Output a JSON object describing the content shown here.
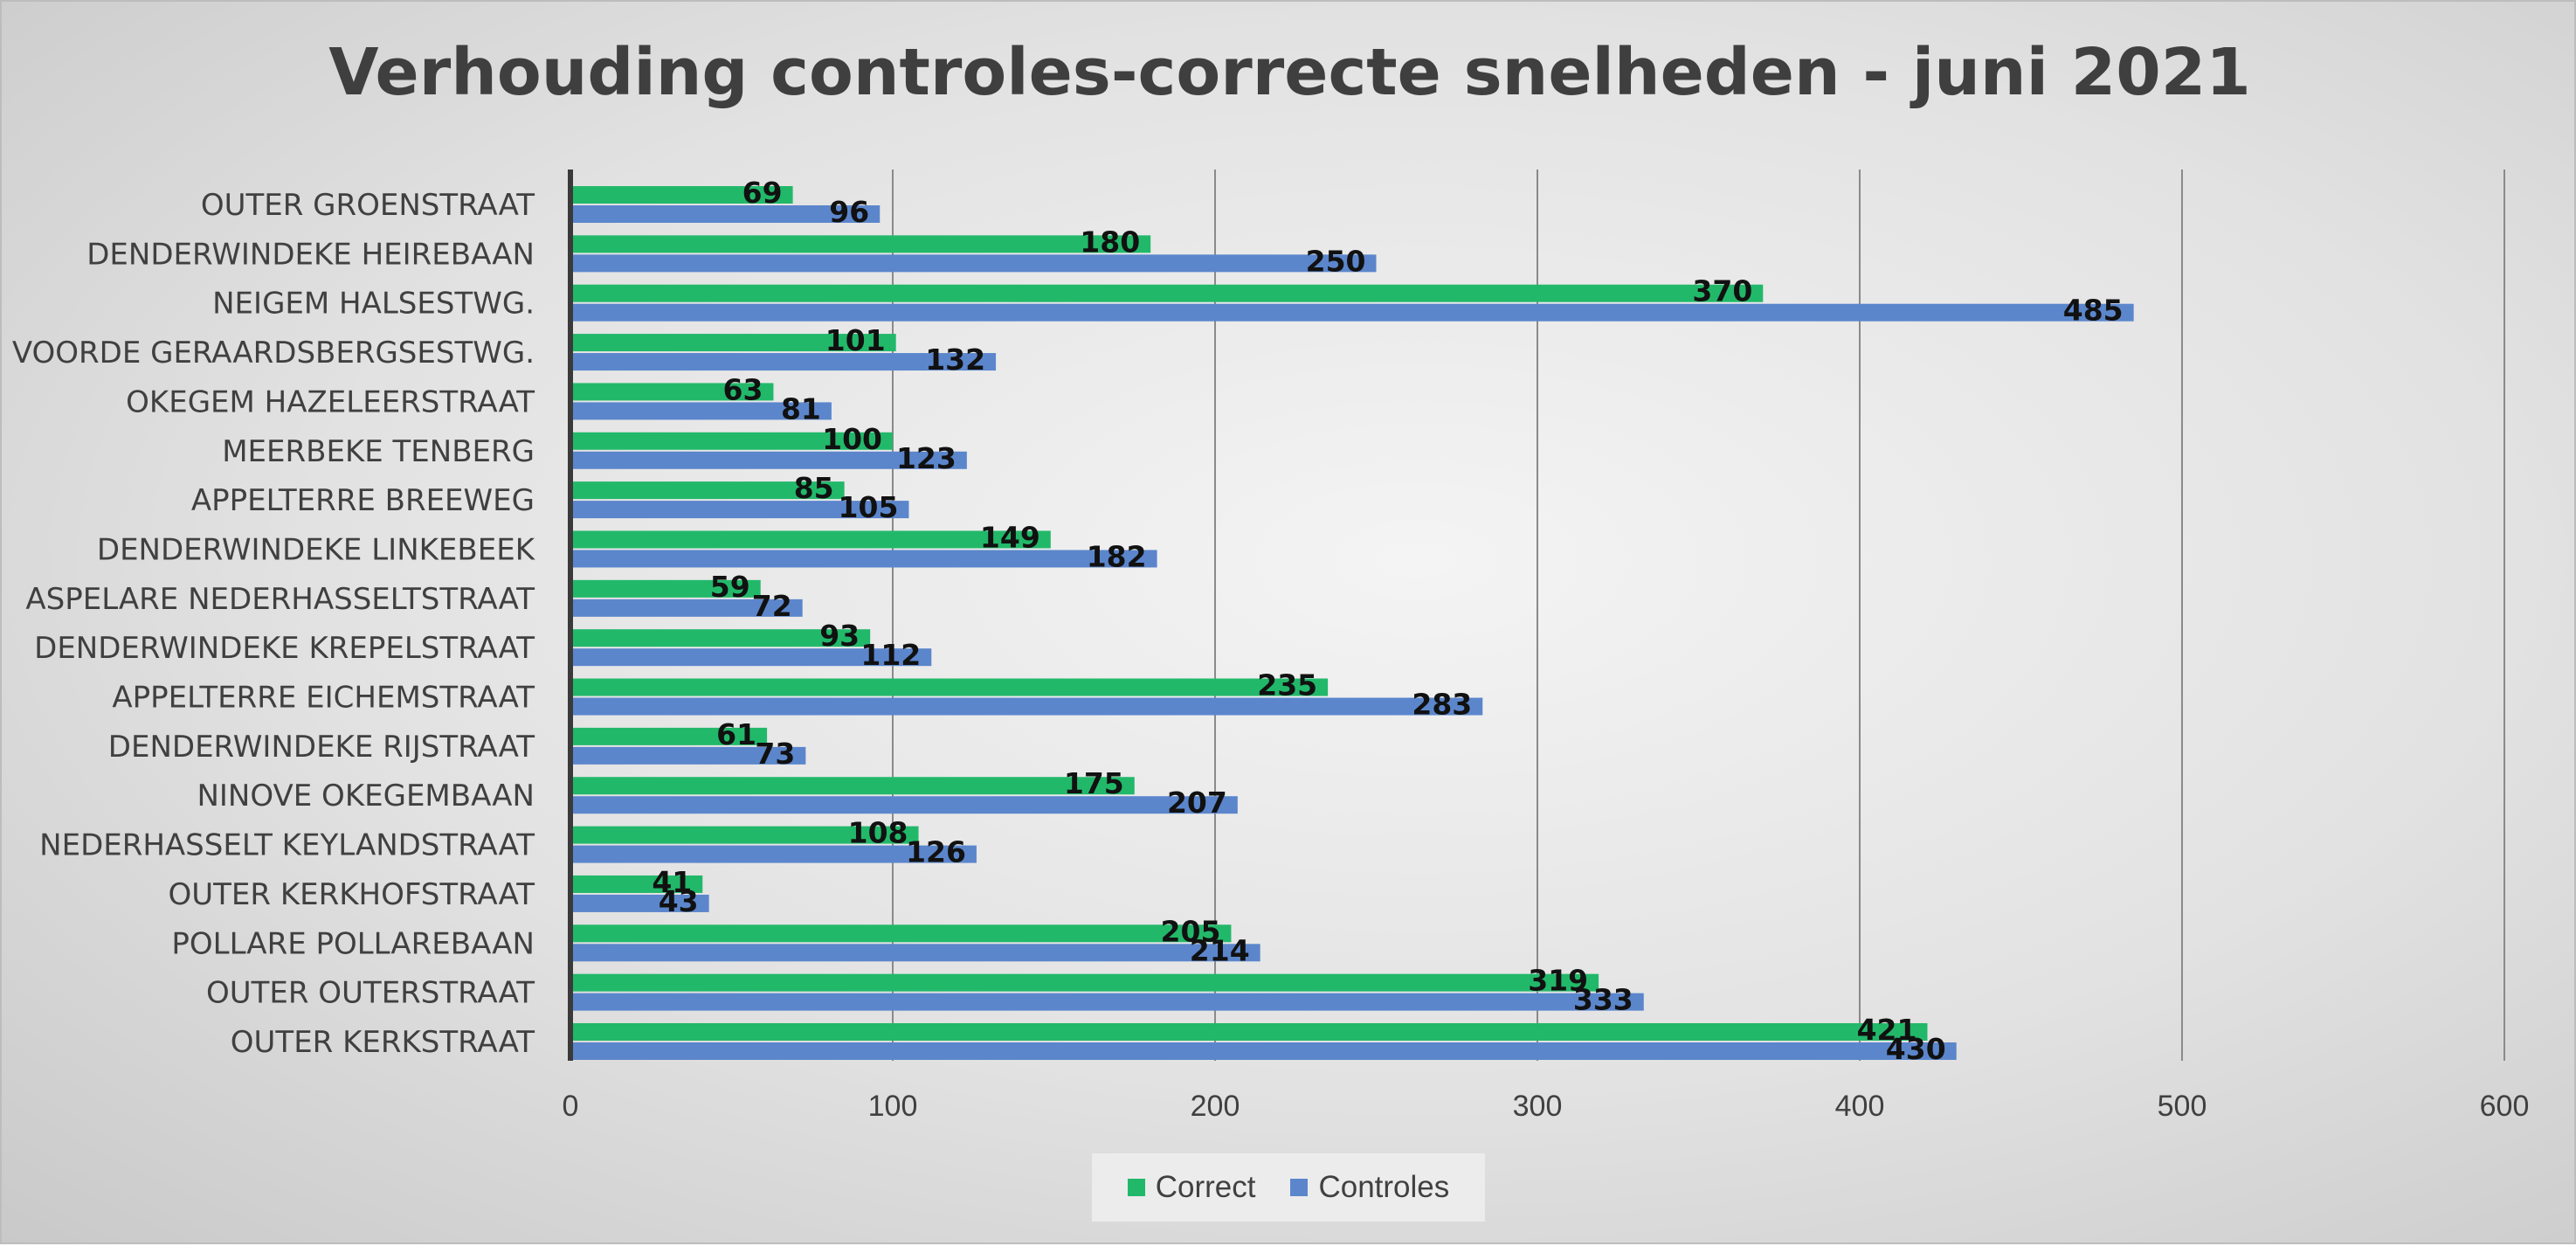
{
  "colors": {
    "correct": "#22b86a",
    "controles": "#5b86cc",
    "axis": "#3a3a3a",
    "grid": "#8a8a8a"
  },
  "chart_data": {
    "type": "bar",
    "orientation": "horizontal",
    "title": "Verhouding controles-correcte snelheden - juni 2021",
    "categories": [
      "OUTER GROENSTRAAT",
      "DENDERWINDEKE HEIREBAAN",
      "NEIGEM HALSESTWG.",
      "VOORDE GERAARDSBERGSESTWG.",
      "OKEGEM HAZELEERSTRAAT",
      "MEERBEKE TENBERG",
      "APPELTERRE BREEWEG",
      "DENDERWINDEKE LINKEBEEK",
      "ASPELARE NEDERHASSELTSTRAAT",
      "DENDERWINDEKE KREPELSTRAAT",
      "APPELTERRE EICHEMSTRAAT",
      "DENDERWINDEKE RIJSTRAAT",
      "NINOVE OKEGEMBAAN",
      "NEDERHASSELT KEYLANDSTRAAT",
      "OUTER KERKHOFSTRAAT",
      "POLLARE POLLAREBAAN",
      "OUTER OUTERSTRAAT",
      "OUTER KERKSTRAAT"
    ],
    "series": [
      {
        "name": "Correct",
        "values": [
          69,
          180,
          370,
          101,
          63,
          100,
          85,
          149,
          59,
          93,
          235,
          61,
          175,
          108,
          41,
          205,
          319,
          421
        ]
      },
      {
        "name": "Controles",
        "values": [
          96,
          250,
          485,
          132,
          81,
          123,
          105,
          182,
          72,
          112,
          283,
          73,
          207,
          126,
          43,
          214,
          333,
          430
        ]
      }
    ],
    "xlim": [
      0,
      600
    ],
    "xticks": [
      0,
      100,
      200,
      300,
      400,
      500,
      600
    ],
    "grid": true,
    "legend": "bottom",
    "data_labels": true
  }
}
